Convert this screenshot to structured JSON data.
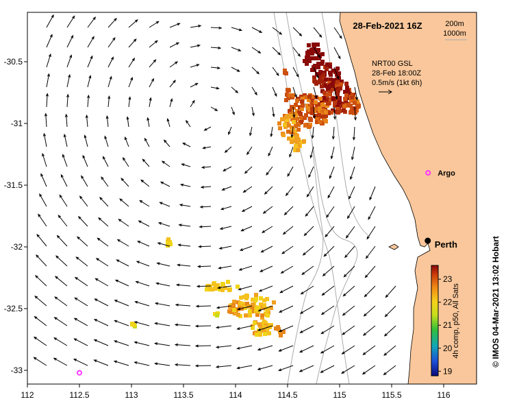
{
  "map": {
    "title": "28-Feb-2021 16Z",
    "depth_legend": [
      "200m",
      "1000m"
    ],
    "current_info": [
      "NRT00 GSL",
      "28-Feb 18:00Z",
      "0.5m/s (1kt 6h)"
    ],
    "x_ticks": [
      "112",
      "112.5",
      "113",
      "113.5",
      "114",
      "114.5",
      "115",
      "115.5",
      "116"
    ],
    "y_ticks": [
      "-30.5",
      "-31",
      "-31.5",
      "-32",
      "-32.5",
      "-33"
    ],
    "places": [
      {
        "name": "Argo",
        "lon": 115.85,
        "lat": -31.4,
        "marker": "argo"
      },
      {
        "name": "Perth",
        "lon": 115.86,
        "lat": -31.95,
        "marker": "city"
      },
      {
        "name": "",
        "lon": 112.5,
        "lat": -33.02,
        "marker": "argo"
      }
    ],
    "colorbar": {
      "label": "4h comp, p50, All Sats",
      "ticks": [
        "19",
        "20",
        "21",
        "22",
        "23"
      ],
      "range": [
        18.8,
        23.6
      ]
    },
    "credit": "© IMOS 04-Mar-2021 13:02 Hobart",
    "colors": {
      "land": "#f9c79b",
      "sea": "#ffffff",
      "bathymetry": "#aaaaaa",
      "argo": "#ff33ff"
    }
  }
}
